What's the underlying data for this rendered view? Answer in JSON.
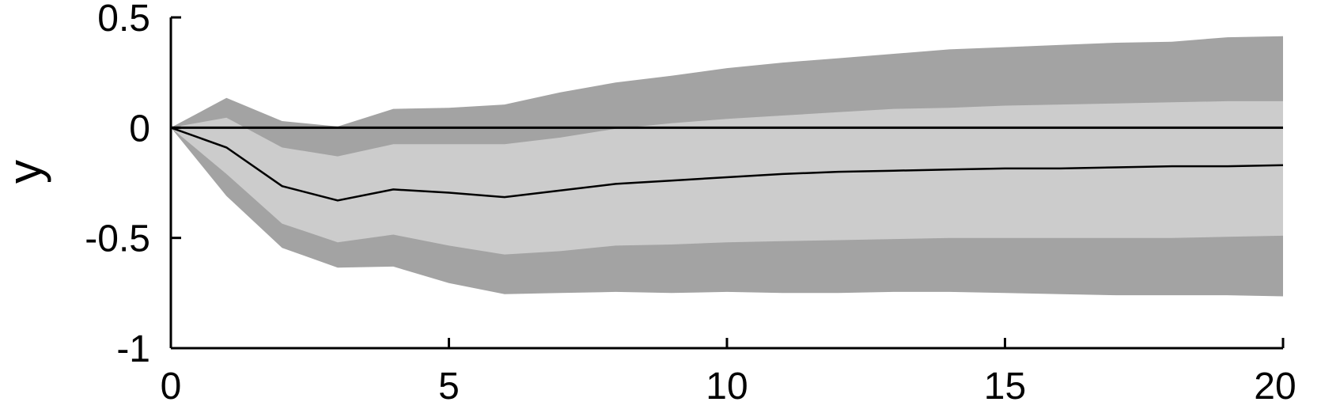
{
  "chart_data": {
    "type": "area",
    "title": "",
    "xlabel": "",
    "ylabel": "y",
    "xlim": [
      0,
      20
    ],
    "ylim": [
      -1,
      0.5
    ],
    "x_ticks": [
      0,
      5,
      10,
      15,
      20
    ],
    "x_tick_labels": [
      "0",
      "5",
      "10",
      "15",
      "20"
    ],
    "y_ticks": [
      0.5,
      0,
      -0.5,
      -1
    ],
    "y_tick_labels": [
      "0.5",
      "0",
      "-0.5",
      "-1"
    ],
    "grid": false,
    "legend": "none",
    "zero_line": 0,
    "colors": {
      "outer_band": "#a3a3a3",
      "inner_band": "#cccccc",
      "median_line": "#000000",
      "zero_line": "#000000",
      "axis": "#000000"
    },
    "x": [
      0,
      1,
      2,
      3,
      4,
      5,
      6,
      7,
      8,
      9,
      10,
      11,
      12,
      13,
      14,
      15,
      16,
      17,
      18,
      19,
      20
    ],
    "series": [
      {
        "role": "outer_upper",
        "values": [
          0.0,
          0.135,
          0.03,
          0.005,
          0.085,
          0.09,
          0.105,
          0.16,
          0.205,
          0.235,
          0.27,
          0.295,
          0.315,
          0.335,
          0.355,
          0.365,
          0.375,
          0.385,
          0.39,
          0.41,
          0.415
        ]
      },
      {
        "role": "inner_upper",
        "values": [
          0.0,
          0.045,
          -0.09,
          -0.13,
          -0.075,
          -0.075,
          -0.075,
          -0.045,
          -0.005,
          0.02,
          0.04,
          0.055,
          0.07,
          0.085,
          0.09,
          0.1,
          0.105,
          0.11,
          0.115,
          0.12,
          0.12
        ]
      },
      {
        "role": "median",
        "values": [
          0.0,
          -0.09,
          -0.265,
          -0.33,
          -0.28,
          -0.295,
          -0.315,
          -0.285,
          -0.255,
          -0.24,
          -0.225,
          -0.21,
          -0.2,
          -0.195,
          -0.19,
          -0.185,
          -0.185,
          -0.18,
          -0.175,
          -0.175,
          -0.17
        ]
      },
      {
        "role": "inner_lower",
        "values": [
          0.0,
          -0.21,
          -0.435,
          -0.52,
          -0.485,
          -0.535,
          -0.575,
          -0.56,
          -0.535,
          -0.53,
          -0.52,
          -0.515,
          -0.51,
          -0.505,
          -0.5,
          -0.5,
          -0.5,
          -0.5,
          -0.5,
          -0.495,
          -0.49
        ]
      },
      {
        "role": "outer_lower",
        "values": [
          0.0,
          -0.31,
          -0.545,
          -0.635,
          -0.63,
          -0.705,
          -0.755,
          -0.75,
          -0.745,
          -0.75,
          -0.745,
          -0.75,
          -0.75,
          -0.745,
          -0.745,
          -0.75,
          -0.755,
          -0.76,
          -0.76,
          -0.76,
          -0.765
        ]
      }
    ]
  }
}
